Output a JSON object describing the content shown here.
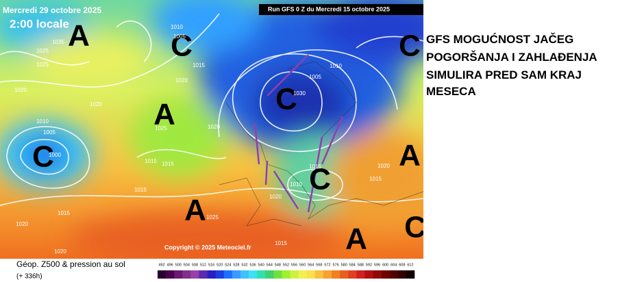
{
  "map": {
    "valid_date": "Mercredi 29 octobre 2025",
    "local_time": "2:00 locale",
    "run": "Run GFS 0 Z du Mercredi 15 octobre 2025",
    "copyright": "Copyright © 2025 Meteociel.fr",
    "pressure_centers": [
      "A",
      "C",
      "C",
      "C",
      "A",
      "C",
      "A",
      "C",
      "A",
      "A",
      "C"
    ],
    "isobar_labels": [
      "1035",
      "1025",
      "1025",
      "1010",
      "1005",
      "1015",
      "1020",
      "1020",
      "1010",
      "1005",
      "1000",
      "1025",
      "1020",
      "1015",
      "1015",
      "1015",
      "1015",
      "1020",
      "1020",
      "1020",
      "1010",
      "1015",
      "1020",
      "1015",
      "1025",
      "1015",
      "1010",
      "1005",
      "1030",
      "1020"
    ]
  },
  "legend": {
    "title": "Géop. Z500 & pression au sol",
    "lead": "(+ 336h)",
    "values": [
      492,
      496,
      500,
      504,
      508,
      512,
      516,
      520,
      524,
      528,
      532,
      536,
      540,
      544,
      548,
      552,
      556,
      560,
      564,
      568,
      572,
      576,
      580,
      584,
      588,
      592,
      596,
      600,
      604,
      608,
      612
    ],
    "colors": [
      "#2a0030",
      "#4b0050",
      "#6a1a70",
      "#80308a",
      "#9a40a8",
      "#5a2ab0",
      "#2a20c0",
      "#1a40e0",
      "#2070ff",
      "#3a9aff",
      "#40c0ff",
      "#40e0f0",
      "#30e0b0",
      "#40d070",
      "#70e040",
      "#a0f030",
      "#d0f040",
      "#f0f050",
      "#f8e050",
      "#f8c040",
      "#f8a030",
      "#f08020",
      "#e86020",
      "#e04020",
      "#d02020",
      "#b01010",
      "#900808",
      "#700000",
      "#500000",
      "#300000",
      "#100000"
    ]
  },
  "caption": {
    "lines": [
      "GFS MOGUĆNOST JAČEG",
      "POGORŠANJA I ZAHLAĐENJA",
      "SIMULIRA PRED SAM KRAJ",
      "MESECA"
    ]
  }
}
